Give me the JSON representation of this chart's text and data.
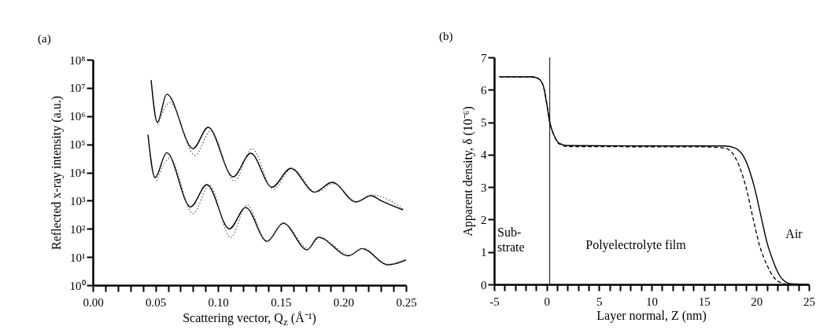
{
  "chart_data": [
    {
      "type": "line",
      "title": "(a)",
      "xlabel": "Scattering vector, Q$_{z}$ (Å⁻¹)",
      "ylabel": "Reflected x-ray intensity (a.u.)",
      "log": "y",
      "xlim": [
        0,
        0.25
      ],
      "ylim": [
        1,
        100000000
      ],
      "xticks": [
        {
          "value": 0,
          "label": "0.00"
        },
        {
          "value": 0.01,
          "label": null
        },
        {
          "value": 0.02,
          "label": null
        },
        {
          "value": 0.03,
          "label": null
        },
        {
          "value": 0.04,
          "label": null
        },
        {
          "value": 0.05,
          "label": "0.05"
        },
        {
          "value": 0.06,
          "label": null
        },
        {
          "value": 0.07,
          "label": null
        },
        {
          "value": 0.08,
          "label": null
        },
        {
          "value": 0.09,
          "label": null
        },
        {
          "value": 0.1,
          "label": "0.10"
        },
        {
          "value": 0.11,
          "label": null
        },
        {
          "value": 0.12,
          "label": null
        },
        {
          "value": 0.13,
          "label": null
        },
        {
          "value": 0.14,
          "label": null
        },
        {
          "value": 0.15,
          "label": "0.15"
        },
        {
          "value": 0.16,
          "label": null
        },
        {
          "value": 0.17,
          "label": null
        },
        {
          "value": 0.18,
          "label": null
        },
        {
          "value": 0.19,
          "label": null
        },
        {
          "value": 0.2,
          "label": "0.20"
        },
        {
          "value": 0.21,
          "label": null
        },
        {
          "value": 0.22,
          "label": null
        },
        {
          "value": 0.23,
          "label": null
        },
        {
          "value": 0.24,
          "label": null
        },
        {
          "value": 0.25,
          "label": "0.25"
        }
      ],
      "yticks": [
        {
          "value": 1,
          "label": "10⁰"
        },
        {
          "value": 10,
          "label": "10¹"
        },
        {
          "value": 100,
          "label": "10²"
        },
        {
          "value": 1000,
          "label": "10³"
        },
        {
          "value": 10000,
          "label": "10⁴"
        },
        {
          "value": 100000,
          "label": "10⁵"
        },
        {
          "value": 1000000,
          "label": "10⁶"
        },
        {
          "value": 10000000,
          "label": "10⁷"
        },
        {
          "value": 100000000,
          "label": "10⁸"
        }
      ],
      "grid": false,
      "series": [
        {
          "color": "#000000",
          "line_style": "solid",
          "x": [
            0.0465,
            0.0515,
            0.059,
            0.08,
            0.092,
            0.112,
            0.126,
            0.143,
            0.158,
            0.177,
            0.191,
            0.21,
            0.222,
            0.23,
            0.2475
          ],
          "values": [
            19000000,
            600000,
            6000000,
            70000,
            400000,
            7000,
            48000,
            3000,
            14000,
            2000,
            4500,
            900,
            1500,
            1000,
            470
          ]
        },
        {
          "color": "#666666",
          "line_style": "dotted",
          "x": [
            0.052,
            0.0615,
            0.0817,
            0.094,
            0.113,
            0.127,
            0.144,
            0.159,
            0.178,
            0.192,
            0.211,
            0.223,
            0.248
          ],
          "values": [
            500000,
            3000000,
            40000,
            300000,
            5000,
            70000,
            2500,
            14000,
            2000,
            4000,
            900,
            1600,
            500
          ]
        },
        {
          "color": "#000000",
          "line_style": "solid",
          "x": [
            0.044,
            0.0496,
            0.059,
            0.078,
            0.091,
            0.109,
            0.122,
            0.139,
            0.152,
            0.171,
            0.18,
            0.204,
            0.215,
            0.2355,
            0.25
          ],
          "values": [
            220000,
            6600,
            50000,
            600,
            3700,
            100,
            570,
            36,
            160,
            18,
            50,
            11,
            20,
            5.3,
            7.8
          ]
        },
        {
          "color": "#666666",
          "line_style": "dotted",
          "x": [
            0.051,
            0.0615,
            0.08,
            0.093,
            0.11,
            0.123,
            0.139,
            0.152,
            0.172,
            0.181,
            0.205,
            0.216,
            0.235,
            0.249
          ],
          "values": [
            5000,
            32000,
            350,
            3500,
            50,
            700,
            35,
            160,
            20,
            50,
            12,
            20,
            5.6,
            8
          ]
        }
      ]
    },
    {
      "type": "line",
      "title": "(b)",
      "xlabel": "Layer normal, Z (nm)",
      "ylabel": "Apparent density, δ (10⁻⁶)",
      "xlim": [
        -5,
        25
      ],
      "ylim": [
        0,
        7
      ],
      "xticks": [
        -5,
        {
          "value": -4,
          "label": null
        },
        {
          "value": -3,
          "label": null
        },
        {
          "value": -2,
          "label": null
        },
        {
          "value": -1,
          "label": null
        },
        0,
        {
          "value": 1,
          "label": null
        },
        {
          "value": 2,
          "label": null
        },
        {
          "value": 3,
          "label": null
        },
        {
          "value": 4,
          "label": null
        },
        5,
        {
          "value": 6,
          "label": null
        },
        {
          "value": 7,
          "label": null
        },
        {
          "value": 8,
          "label": null
        },
        {
          "value": 9,
          "label": null
        },
        10,
        {
          "value": 11,
          "label": null
        },
        {
          "value": 12,
          "label": null
        },
        {
          "value": 13,
          "label": null
        },
        {
          "value": 14,
          "label": null
        },
        15,
        {
          "value": 16,
          "label": null
        },
        {
          "value": 17,
          "label": null
        },
        {
          "value": 18,
          "label": null
        },
        {
          "value": 19,
          "label": null
        },
        20,
        {
          "value": 21,
          "label": null
        },
        {
          "value": 22,
          "label": null
        },
        {
          "value": 23,
          "label": null
        },
        {
          "value": 24,
          "label": null
        },
        25
      ],
      "yticks": [
        0,
        1,
        2,
        3,
        4,
        5,
        6,
        7
      ],
      "grid": false,
      "ref_lines": [
        {
          "axis": "x",
          "value": 0.3,
          "color": "#000000"
        }
      ],
      "annotations": [
        "Sub-\nstrate",
        "Polyelectrolyte film",
        "Air"
      ],
      "series": [
        {
          "color": "#000000",
          "line_style": "solid",
          "x": [
            -4.5,
            -1.5,
            -0.8,
            -0.3,
            0,
            0.3,
            0.7,
            1.2,
            2,
            10,
            17,
            18,
            19,
            19.8,
            20.5,
            21,
            21.5,
            22,
            22.5,
            23.3,
            25
          ],
          "values": [
            6.4,
            6.4,
            6.35,
            6.1,
            5.6,
            5.0,
            4.6,
            4.35,
            4.28,
            4.27,
            4.27,
            4.2,
            3.8,
            3.0,
            2.0,
            1.3,
            0.8,
            0.4,
            0.15,
            0.02,
            0
          ]
        },
        {
          "color": "#000000",
          "line_style": "dashed",
          "x": [
            -4.5,
            -1.5,
            -0.8,
            -0.3,
            0,
            0.3,
            0.7,
            1.2,
            2,
            15,
            17,
            18,
            19,
            19.7,
            20.3,
            21,
            21.7,
            22.5,
            23
          ],
          "values": [
            6.4,
            6.4,
            6.35,
            6.1,
            5.6,
            5.0,
            4.6,
            4.33,
            4.25,
            4.24,
            4.2,
            3.9,
            3.0,
            2.0,
            1.2,
            0.6,
            0.2,
            0.03,
            0
          ]
        }
      ]
    }
  ]
}
